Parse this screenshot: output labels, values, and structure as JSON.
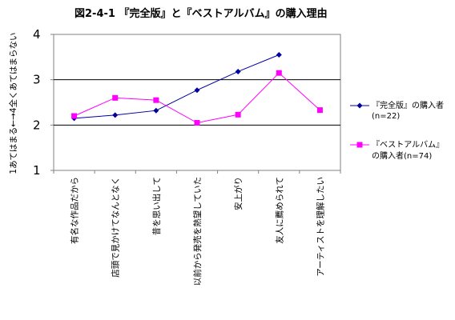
{
  "chart_data": {
    "type": "line",
    "title": "図2-4-1 『完全版』と『ベストアルバム』の購入理由",
    "ylabel": "1あてはまる←→4全くあてはまらない",
    "xlabel": "",
    "ylim": [
      1,
      4
    ],
    "yticks": [
      "1",
      "2",
      "3",
      "4"
    ],
    "grid": "horizontal lines at 2 and 3",
    "legend_position": "right",
    "categories": [
      "有名な作品だから",
      "店頭で見かけてなんとなく",
      "昔を思い出して",
      "以前から発売を熱望していた",
      "安上がり",
      "友人に薦められて",
      "アーティストを理解したい"
    ],
    "series": [
      {
        "name": "『完全版』の購入者",
        "name_line2": "(n=22)",
        "color": "#0000A0",
        "marker": "diamond",
        "values": [
          2.15,
          2.22,
          2.32,
          2.77,
          3.18,
          3.55,
          null
        ]
      },
      {
        "name": "『ベストアルバム』",
        "name_line2": "の購入者(n=74)",
        "color": "#FF00FF",
        "marker": "square",
        "values": [
          2.2,
          2.6,
          2.55,
          2.05,
          2.23,
          3.15,
          2.33
        ]
      }
    ]
  }
}
